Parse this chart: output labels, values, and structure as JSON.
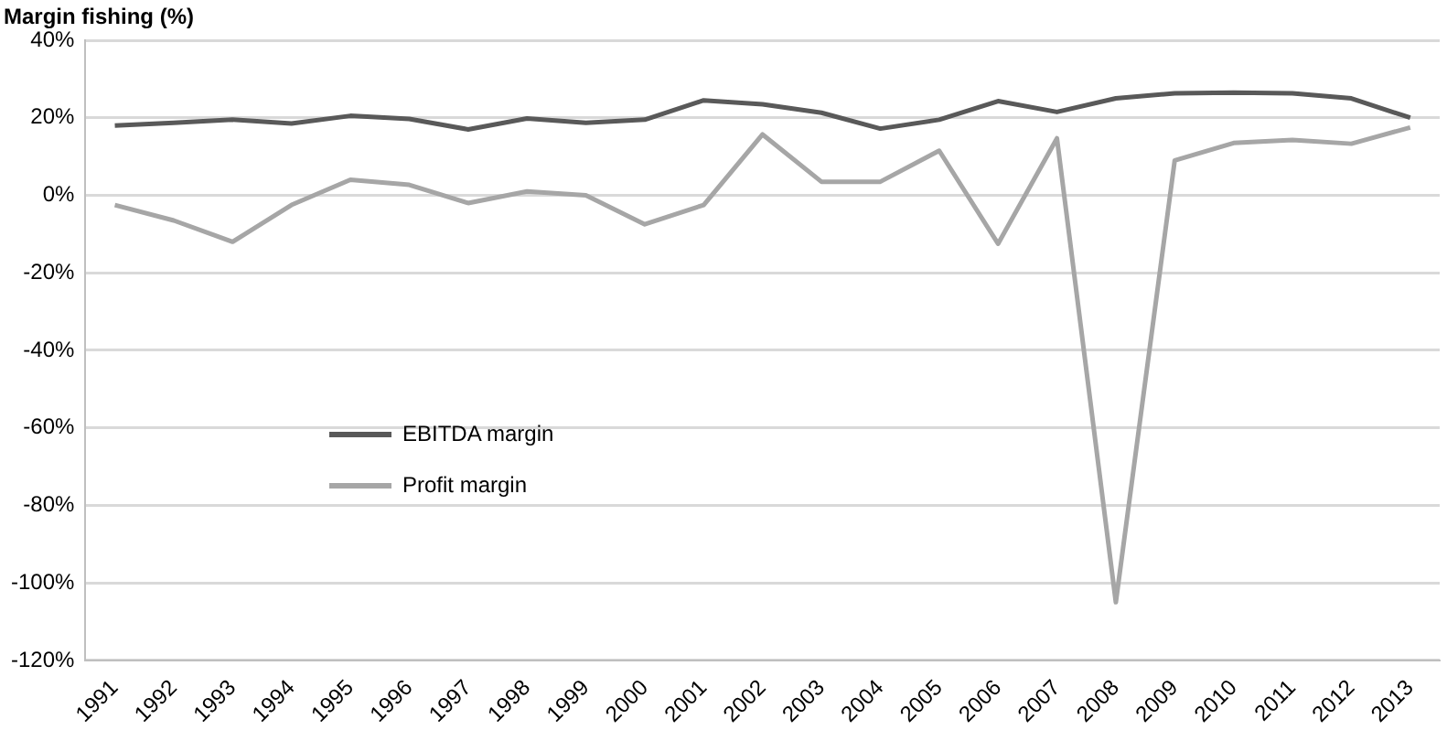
{
  "chart_data": {
    "type": "line",
    "title": "Margin fishing (%)",
    "categories": [
      "1991",
      "1992",
      "1993",
      "1994",
      "1995",
      "1996",
      "1997",
      "1998",
      "1999",
      "2000",
      "2001",
      "2002",
      "2003",
      "2004",
      "2005",
      "2006",
      "2007",
      "2008",
      "2009",
      "2010",
      "2011",
      "2012",
      "2013"
    ],
    "series": [
      {
        "name": "EBITDA margin",
        "color": "#595959",
        "values": [
          18,
          18.7,
          19.5,
          18.5,
          20.5,
          19.7,
          17,
          19.8,
          18.7,
          19.5,
          24.5,
          23.5,
          21.3,
          17.2,
          19.5,
          24.3,
          21.5,
          25,
          26.3,
          26.5,
          26.3,
          25,
          20
        ]
      },
      {
        "name": "Profit margin",
        "color": "#a6a6a6",
        "values": [
          -2.5,
          -6.5,
          -12,
          -2.5,
          4,
          2.7,
          -2,
          1,
          0,
          -7.5,
          -2.5,
          15.7,
          3.5,
          3.5,
          11.5,
          -12.5,
          14.7,
          -105,
          9,
          13.5,
          14.3,
          13.3,
          17.5
        ]
      }
    ],
    "ylim": [
      -120,
      40
    ],
    "yticks": [
      {
        "value": -120,
        "label": "-120%"
      },
      {
        "value": -100,
        "label": "-100%"
      },
      {
        "value": -80,
        "label": "-80%"
      },
      {
        "value": -60,
        "label": "-60%"
      },
      {
        "value": -40,
        "label": "-40%"
      },
      {
        "value": -20,
        "label": "-20%"
      },
      {
        "value": 0,
        "label": "0%"
      },
      {
        "value": 20,
        "label": "20%"
      },
      {
        "value": 40,
        "label": "40%"
      }
    ],
    "grid": "y",
    "legend": "left",
    "marker": "none",
    "line_style": "solid"
  }
}
